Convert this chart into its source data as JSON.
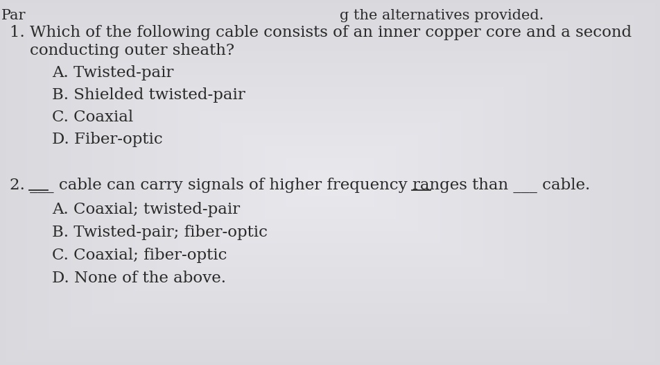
{
  "background_color": "#d8d8dc",
  "text_color": "#2a2a2a",
  "font_size_header": 15,
  "font_size_question": 16.5,
  "font_size_option": 16.5,
  "header_left": "Par",
  "header_right": "g the alternatives provided.",
  "q1_line1": "1. Which of the following cable consists of an inner copper core and a second",
  "q1_line2": "    conducting outer sheath?",
  "q1_options": [
    "A. Twisted-pair",
    "B. Shielded twisted-pair",
    "C. Coaxial",
    "D. Fiber-optic"
  ],
  "q2_line": "2. ___  cable can carry signals of higher frequency ranges than ___  cable.",
  "q2_options": [
    "A. Coaxial; twisted-pair",
    "B. Twisted-pair; fiber-optic",
    "C. Coaxial; fiber-optic",
    "D. None of the above."
  ]
}
